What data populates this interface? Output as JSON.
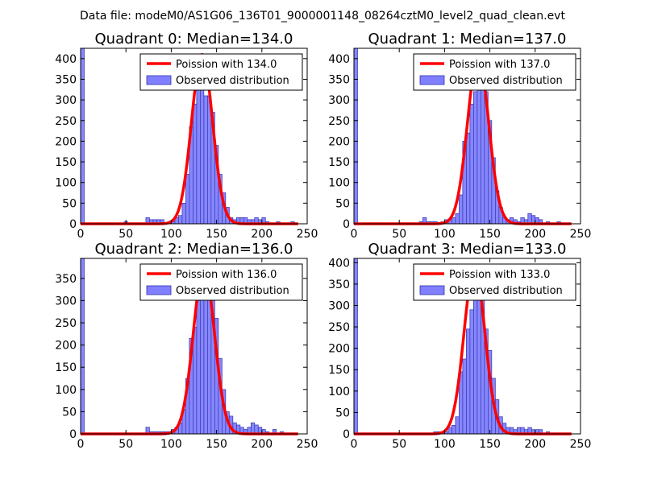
{
  "figure": {
    "title": "Data file: modeM0/AS1G06_136T01_9000001148_08264cztM0_level2_quad_clean.evt"
  },
  "colors": {
    "hist_fill": "#7f7fff",
    "hist_edge": "#3333aa",
    "poisson_line": "#ff0000"
  },
  "chart_data": [
    {
      "type": "bar",
      "title": "Quadrant 0: Median=134.0",
      "xlim": [
        0,
        250
      ],
      "ylim": [
        0,
        425
      ],
      "xticks": [
        0,
        50,
        100,
        150,
        200,
        250
      ],
      "yticks": [
        0,
        50,
        100,
        150,
        200,
        250,
        300,
        350,
        400
      ],
      "legend": [
        "Poission with 134.0",
        "Observed distribution"
      ],
      "legend_position": "top-right",
      "poisson_mean": 134.0,
      "poisson_peak": 410,
      "bin_width": 4,
      "bins": [
        [
          0,
          425
        ],
        [
          48,
          5
        ],
        [
          72,
          15
        ],
        [
          76,
          10
        ],
        [
          80,
          10
        ],
        [
          84,
          10
        ],
        [
          88,
          10
        ],
        [
          96,
          5
        ],
        [
          100,
          5
        ],
        [
          104,
          15
        ],
        [
          108,
          20
        ],
        [
          112,
          50
        ],
        [
          116,
          120
        ],
        [
          120,
          235
        ],
        [
          124,
          290
        ],
        [
          128,
          340
        ],
        [
          132,
          335
        ],
        [
          136,
          310
        ],
        [
          140,
          310
        ],
        [
          144,
          270
        ],
        [
          148,
          190
        ],
        [
          152,
          120
        ],
        [
          156,
          75
        ],
        [
          160,
          40
        ],
        [
          164,
          15
        ],
        [
          168,
          10
        ],
        [
          172,
          15
        ],
        [
          176,
          15
        ],
        [
          180,
          15
        ],
        [
          184,
          10
        ],
        [
          188,
          10
        ],
        [
          192,
          15
        ],
        [
          196,
          10
        ],
        [
          200,
          15
        ],
        [
          204,
          5
        ],
        [
          216,
          5
        ],
        [
          232,
          5
        ]
      ]
    },
    {
      "type": "bar",
      "title": "Quadrant 1: Median=137.0",
      "xlim": [
        0,
        250
      ],
      "ylim": [
        0,
        425
      ],
      "xticks": [
        0,
        50,
        100,
        150,
        200,
        250
      ],
      "yticks": [
        0,
        50,
        100,
        150,
        200,
        250,
        300,
        350,
        400
      ],
      "legend": [
        "Poission with 137.0",
        "Observed distribution"
      ],
      "legend_position": "top-right",
      "poisson_mean": 137.0,
      "poisson_peak": 405,
      "bin_width": 4,
      "bins": [
        [
          0,
          425
        ],
        [
          72,
          5
        ],
        [
          76,
          15
        ],
        [
          80,
          5
        ],
        [
          84,
          5
        ],
        [
          88,
          5
        ],
        [
          96,
          5
        ],
        [
          100,
          10
        ],
        [
          104,
          10
        ],
        [
          108,
          15
        ],
        [
          112,
          25
        ],
        [
          116,
          70
        ],
        [
          120,
          200
        ],
        [
          124,
          220
        ],
        [
          128,
          290
        ],
        [
          132,
          320
        ],
        [
          136,
          380
        ],
        [
          140,
          380
        ],
        [
          144,
          320
        ],
        [
          148,
          250
        ],
        [
          152,
          160
        ],
        [
          156,
          80
        ],
        [
          160,
          40
        ],
        [
          164,
          15
        ],
        [
          168,
          10
        ],
        [
          172,
          15
        ],
        [
          176,
          10
        ],
        [
          180,
          5
        ],
        [
          184,
          15
        ],
        [
          188,
          10
        ],
        [
          192,
          25
        ],
        [
          196,
          20
        ],
        [
          200,
          15
        ],
        [
          204,
          10
        ],
        [
          212,
          5
        ],
        [
          224,
          5
        ]
      ]
    },
    {
      "type": "bar",
      "title": "Quadrant 2: Median=136.0",
      "xlim": [
        0,
        250
      ],
      "ylim": [
        0,
        395
      ],
      "xticks": [
        0,
        50,
        100,
        150,
        200,
        250
      ],
      "yticks": [
        0,
        50,
        100,
        150,
        200,
        250,
        300,
        350
      ],
      "legend": [
        "Poission with 136.0",
        "Observed distribution"
      ],
      "legend_position": "top-right",
      "poisson_mean": 136.0,
      "poisson_peak": 375,
      "bin_width": 4,
      "bins": [
        [
          0,
          395
        ],
        [
          72,
          15
        ],
        [
          76,
          5
        ],
        [
          80,
          5
        ],
        [
          84,
          5
        ],
        [
          88,
          5
        ],
        [
          92,
          5
        ],
        [
          96,
          5
        ],
        [
          100,
          10
        ],
        [
          104,
          15
        ],
        [
          108,
          25
        ],
        [
          112,
          55
        ],
        [
          116,
          125
        ],
        [
          120,
          215
        ],
        [
          124,
          240
        ],
        [
          128,
          300
        ],
        [
          132,
          370
        ],
        [
          136,
          345
        ],
        [
          140,
          330
        ],
        [
          144,
          300
        ],
        [
          148,
          260
        ],
        [
          152,
          170
        ],
        [
          156,
          100
        ],
        [
          160,
          50
        ],
        [
          164,
          40
        ],
        [
          168,
          25
        ],
        [
          172,
          20
        ],
        [
          176,
          15
        ],
        [
          180,
          10
        ],
        [
          184,
          15
        ],
        [
          188,
          25
        ],
        [
          192,
          20
        ],
        [
          196,
          15
        ],
        [
          200,
          10
        ],
        [
          204,
          5
        ],
        [
          212,
          10
        ],
        [
          220,
          5
        ]
      ]
    },
    {
      "type": "bar",
      "title": "Quadrant 3: Median=133.0",
      "xlim": [
        0,
        250
      ],
      "ylim": [
        0,
        410
      ],
      "xticks": [
        0,
        50,
        100,
        150,
        200,
        250
      ],
      "yticks": [
        0,
        50,
        100,
        150,
        200,
        250,
        300,
        350,
        400
      ],
      "legend": [
        "Poission with 133.0",
        "Observed distribution"
      ],
      "legend_position": "top-right",
      "poisson_mean": 133.0,
      "poisson_peak": 390,
      "bin_width": 4,
      "bins": [
        [
          0,
          410
        ],
        [
          88,
          5
        ],
        [
          92,
          5
        ],
        [
          96,
          5
        ],
        [
          100,
          5
        ],
        [
          104,
          15
        ],
        [
          108,
          20
        ],
        [
          112,
          40
        ],
        [
          116,
          145
        ],
        [
          120,
          175
        ],
        [
          124,
          245
        ],
        [
          128,
          290
        ],
        [
          132,
          345
        ],
        [
          136,
          380
        ],
        [
          140,
          320
        ],
        [
          144,
          245
        ],
        [
          148,
          195
        ],
        [
          152,
          130
        ],
        [
          156,
          80
        ],
        [
          160,
          40
        ],
        [
          164,
          25
        ],
        [
          168,
          15
        ],
        [
          172,
          15
        ],
        [
          176,
          10
        ],
        [
          180,
          15
        ],
        [
          184,
          15
        ],
        [
          188,
          10
        ],
        [
          192,
          15
        ],
        [
          196,
          10
        ],
        [
          200,
          10
        ],
        [
          204,
          10
        ],
        [
          212,
          5
        ]
      ]
    }
  ]
}
